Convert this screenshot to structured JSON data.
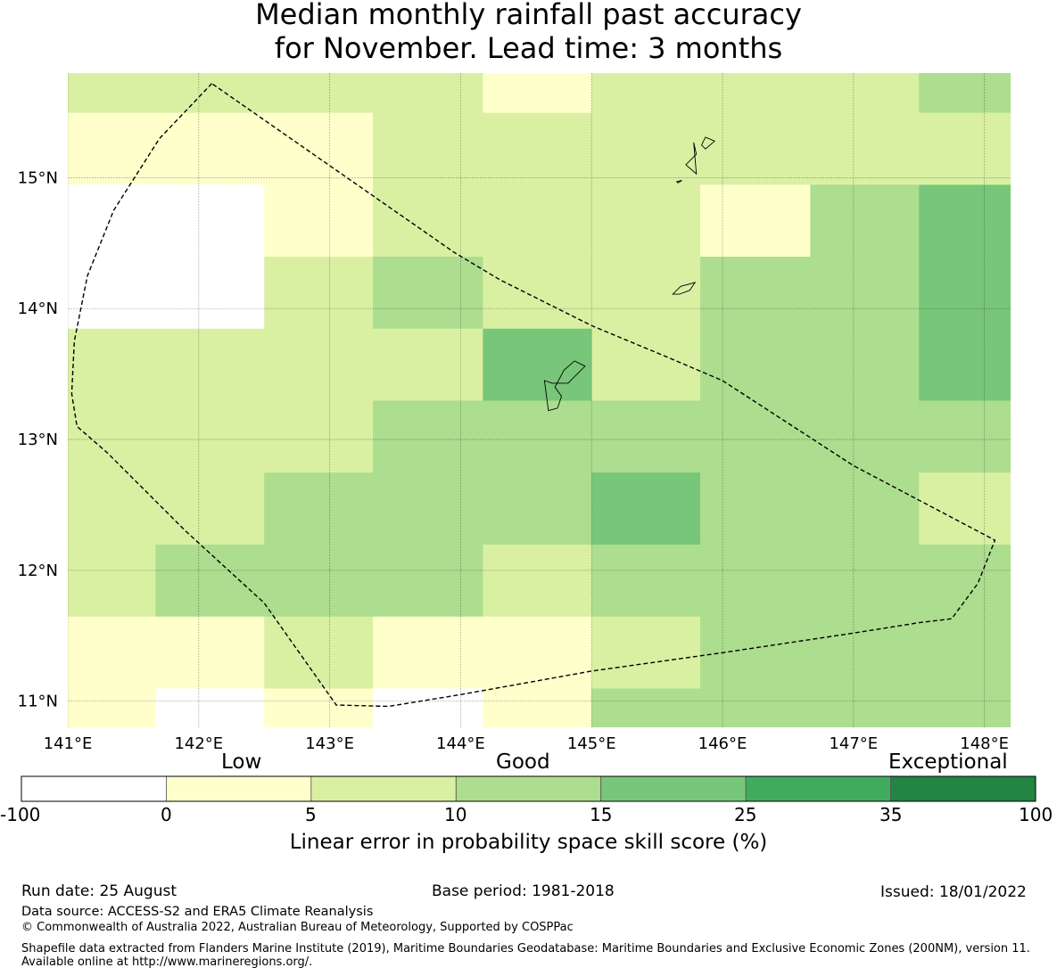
{
  "title": {
    "line1": "Median monthly rainfall past accuracy",
    "line2": "for November. Lead time: 3 months"
  },
  "map": {
    "lon_labels": [
      "141°E",
      "142°E",
      "143°E",
      "144°E",
      "145°E",
      "146°E",
      "147°E",
      "148°E"
    ],
    "lat_labels": [
      "11°N",
      "12°N",
      "13°N",
      "14°N",
      "15°N"
    ],
    "lon_values": [
      141,
      142,
      143,
      144,
      145,
      146,
      147,
      148
    ],
    "lat_values": [
      11,
      12,
      13,
      14,
      15
    ],
    "extent": {
      "lon_min": 141.0,
      "lon_max": 148.2,
      "lat_min": 10.8,
      "lat_max": 15.8
    },
    "grid_lon_edges": [
      140.83,
      141.67,
      142.5,
      143.33,
      144.17,
      145.0,
      145.83,
      146.67,
      147.5,
      148.33
    ],
    "grid_lat_edges": [
      10.5,
      11.1,
      11.65,
      12.2,
      12.75,
      13.3,
      13.85,
      14.4,
      14.95,
      15.5,
      16.05
    ],
    "grid_class_rows_south_to_north": [
      [
        1,
        0,
        1,
        0,
        1,
        3,
        3,
        3,
        3
      ],
      [
        1,
        1,
        2,
        1,
        1,
        2,
        3,
        3,
        3
      ],
      [
        2,
        3,
        3,
        3,
        2,
        3,
        3,
        3,
        3
      ],
      [
        2,
        2,
        3,
        3,
        3,
        4,
        3,
        3,
        2
      ],
      [
        2,
        2,
        2,
        3,
        3,
        3,
        3,
        3,
        3
      ],
      [
        2,
        2,
        2,
        2,
        4,
        2,
        3,
        3,
        4
      ],
      [
        0,
        0,
        2,
        3,
        2,
        2,
        3,
        3,
        4
      ],
      [
        0,
        0,
        1,
        2,
        2,
        2,
        1,
        3,
        4
      ],
      [
        1,
        1,
        1,
        2,
        2,
        2,
        2,
        2,
        2
      ],
      [
        2,
        2,
        2,
        2,
        1,
        2,
        2,
        2,
        3
      ]
    ],
    "eez_boundary": [
      [
        142.1,
        15.72
      ],
      [
        141.7,
        15.3
      ],
      [
        141.35,
        14.75
      ],
      [
        141.15,
        14.25
      ],
      [
        141.05,
        13.75
      ],
      [
        141.03,
        13.35
      ],
      [
        141.07,
        13.1
      ],
      [
        141.3,
        12.9
      ],
      [
        141.9,
        12.3
      ],
      [
        142.5,
        11.75
      ],
      [
        143.05,
        10.97
      ],
      [
        143.45,
        10.96
      ],
      [
        144.0,
        11.05
      ],
      [
        145.0,
        11.23
      ],
      [
        146.0,
        11.37
      ],
      [
        147.0,
        11.52
      ],
      [
        147.5,
        11.6
      ],
      [
        147.75,
        11.63
      ],
      [
        147.95,
        11.9
      ],
      [
        148.08,
        12.23
      ],
      [
        147.0,
        12.8
      ],
      [
        146.0,
        13.45
      ],
      [
        145.6,
        13.62
      ],
      [
        145.0,
        13.87
      ],
      [
        144.3,
        14.22
      ],
      [
        143.95,
        14.43
      ],
      [
        142.1,
        15.72
      ]
    ],
    "islands": [
      [
        [
          144.67,
          13.22
        ],
        [
          144.74,
          13.24
        ],
        [
          144.77,
          13.33
        ],
        [
          144.72,
          13.4
        ],
        [
          144.79,
          13.53
        ],
        [
          144.87,
          13.6
        ],
        [
          144.95,
          13.56
        ],
        [
          144.82,
          13.43
        ],
        [
          144.7,
          13.43
        ],
        [
          144.64,
          13.45
        ],
        [
          144.67,
          13.22
        ]
      ],
      [
        [
          145.62,
          14.11
        ],
        [
          145.68,
          14.17
        ],
        [
          145.79,
          14.2
        ],
        [
          145.75,
          14.14
        ],
        [
          145.67,
          14.11
        ],
        [
          145.62,
          14.11
        ]
      ],
      [
        [
          145.72,
          15.1
        ],
        [
          145.8,
          15.18
        ],
        [
          145.78,
          15.27
        ],
        [
          145.8,
          15.03
        ],
        [
          145.72,
          15.1
        ]
      ],
      [
        [
          145.65,
          14.97
        ],
        [
          145.69,
          14.98
        ],
        [
          145.66,
          14.96
        ],
        [
          145.65,
          14.97
        ]
      ],
      [
        [
          145.84,
          15.25
        ],
        [
          145.87,
          15.31
        ],
        [
          145.94,
          15.28
        ],
        [
          145.87,
          15.22
        ],
        [
          145.84,
          15.25
        ]
      ]
    ]
  },
  "colorbar": {
    "words": [
      "Low",
      "Good",
      "Exceptional"
    ],
    "ticks": [
      "-100",
      "0",
      "5",
      "10",
      "15",
      "25",
      "35",
      "100"
    ],
    "colors": [
      "#ffffff",
      "#ffffcc",
      "#d9f0a3",
      "#addd8e",
      "#78c679",
      "#41ab5d",
      "#238443"
    ],
    "title": "Linear error in probability space skill score (%)"
  },
  "footer": {
    "run_date": "Run date: 25 August",
    "base_period": "Base period: 1981-2018",
    "issued": "Issued: 18/01/2022",
    "data_source": "Data source: ACCESS-S2 and ERA5 Climate Reanalysis",
    "copyright": "© Commonwealth of Australia 2022, Australian Bureau of Meteorology, Supported by COSPPac",
    "shapefile": "Shapefile data extracted from Flanders Marine Institute (2019), Maritime Boundaries Geodatabase: Maritime Boundaries and Exclusive Economic Zones (200NM), version 11. Available online at http://www.marineregions.org/."
  }
}
